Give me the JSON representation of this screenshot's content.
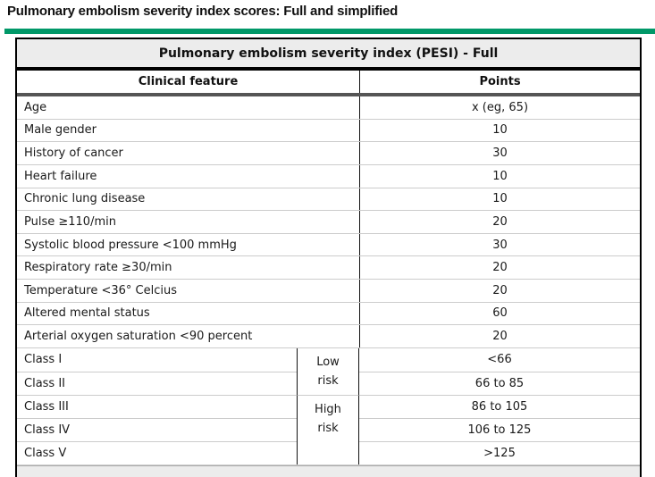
{
  "page": {
    "title": "Pulmonary embolism severity index scores: Full and simplified",
    "accent_color": "#009868",
    "table_header_bg": "#ececec"
  },
  "table": {
    "title": "Pulmonary embolism severity index (PESI) - Full",
    "columns": [
      "Clinical feature",
      "Points"
    ],
    "rows": [
      {
        "feature": "Age",
        "points": "x (eg, 65)"
      },
      {
        "feature": "Male gender",
        "points": "10"
      },
      {
        "feature": "History of cancer",
        "points": "30"
      },
      {
        "feature": "Heart failure",
        "points": "10"
      },
      {
        "feature": "Chronic lung disease",
        "points": "10"
      },
      {
        "feature": "Pulse ≥110/min",
        "points": "20"
      },
      {
        "feature": "Systolic blood pressure <100 mmHg",
        "points": "30"
      },
      {
        "feature": "Respiratory rate ≥30/min",
        "points": "20"
      },
      {
        "feature": "Temperature <36° Celcius",
        "points": "20"
      },
      {
        "feature": "Altered mental status",
        "points": "60"
      },
      {
        "feature": "Arterial oxygen saturation <90 percent",
        "points": "20"
      }
    ],
    "risk_classes": [
      {
        "class": "Class I",
        "points": "<66"
      },
      {
        "class": "Class II",
        "points": "66 to 85"
      },
      {
        "class": "Class III",
        "points": "86 to 105"
      },
      {
        "class": "Class IV",
        "points": "106 to 125"
      },
      {
        "class": "Class V",
        "points": ">125"
      }
    ],
    "risk_groups": [
      {
        "label": "Low risk",
        "spans": [
          "Class I",
          "Class II"
        ]
      },
      {
        "label": "High risk",
        "spans": [
          "Class III",
          "Class IV",
          "Class V"
        ]
      }
    ]
  }
}
